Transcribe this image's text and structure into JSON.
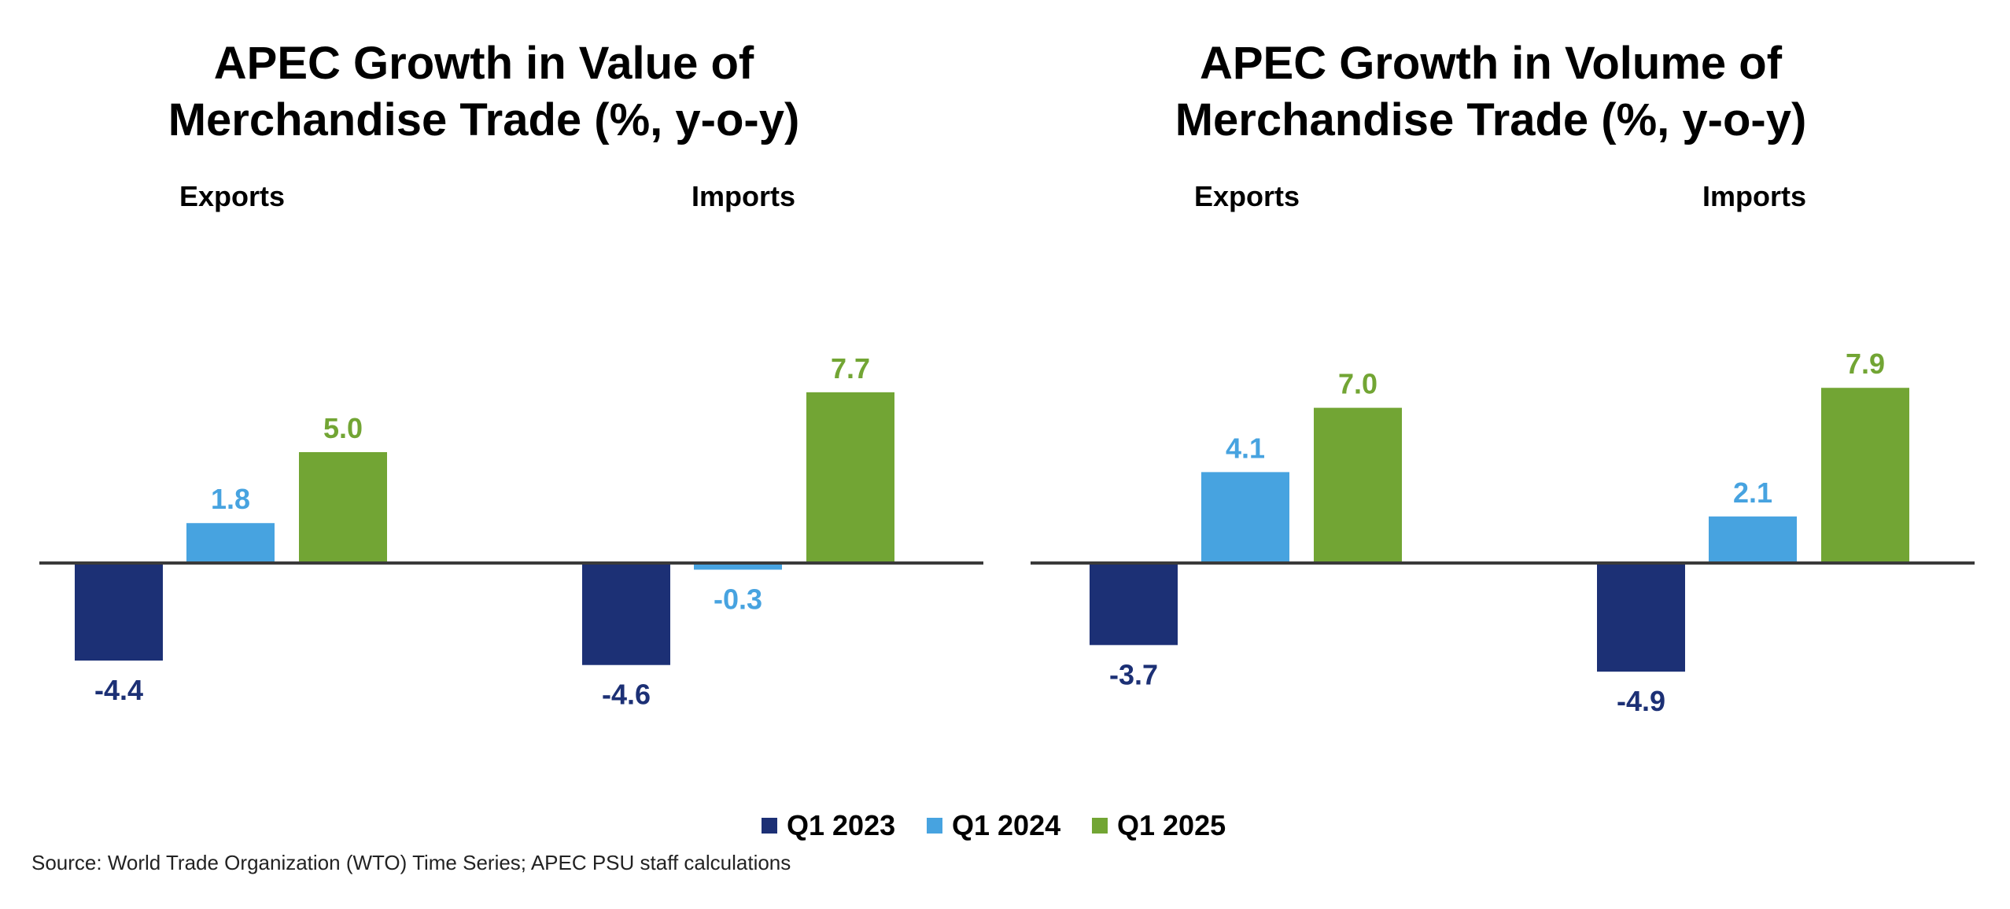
{
  "colors": {
    "Q1 2023": "#1c3075",
    "Q1 2024": "#47a3e0",
    "Q1 2025": "#72a534",
    "axis": "#3a3a3a"
  },
  "chart_data": [
    {
      "type": "bar",
      "title": "APEC Growth in Value of Merchandise Trade (%, y-o-y)",
      "title_lines": [
        "APEC Growth in Value of",
        "Merchandise Trade (%, y-o-y)"
      ],
      "categories": [
        "Exports",
        "Imports"
      ],
      "series": [
        {
          "name": "Q1 2023",
          "values": [
            -4.4,
            -4.6
          ],
          "labels": [
            "-4.4",
            "-4.6"
          ]
        },
        {
          "name": "Q1 2024",
          "values": [
            1.8,
            -0.3
          ],
          "labels": [
            "1.8",
            "-0.3"
          ]
        },
        {
          "name": "Q1 2025",
          "values": [
            5.0,
            7.7
          ],
          "labels": [
            "5.0",
            "7.7"
          ]
        }
      ],
      "ylim": [
        -6.5,
        9
      ],
      "grid": false,
      "legend": "bottom"
    },
    {
      "type": "bar",
      "title": "APEC Growth in Volume of Merchandise Trade (%, y-o-y)",
      "title_lines": [
        "APEC Growth in Volume of",
        "Merchandise Trade (%, y-o-y)"
      ],
      "categories": [
        "Exports",
        "Imports"
      ],
      "series": [
        {
          "name": "Q1 2023",
          "values": [
            -3.7,
            -4.9
          ],
          "labels": [
            "-3.7",
            "-4.9"
          ]
        },
        {
          "name": "Q1 2024",
          "values": [
            4.1,
            2.1
          ],
          "labels": [
            "4.1",
            "2.1"
          ]
        },
        {
          "name": "Q1 2025",
          "values": [
            7.0,
            7.9
          ],
          "labels": [
            "7.0",
            "7.9"
          ]
        }
      ],
      "ylim": [
        -6.5,
        9
      ],
      "grid": false,
      "legend": "bottom"
    }
  ],
  "legend": {
    "items": [
      "Q1 2023",
      "Q1 2024",
      "Q1 2025"
    ]
  },
  "source": "Source: World Trade Organization (WTO) Time Series; APEC PSU staff calculations"
}
